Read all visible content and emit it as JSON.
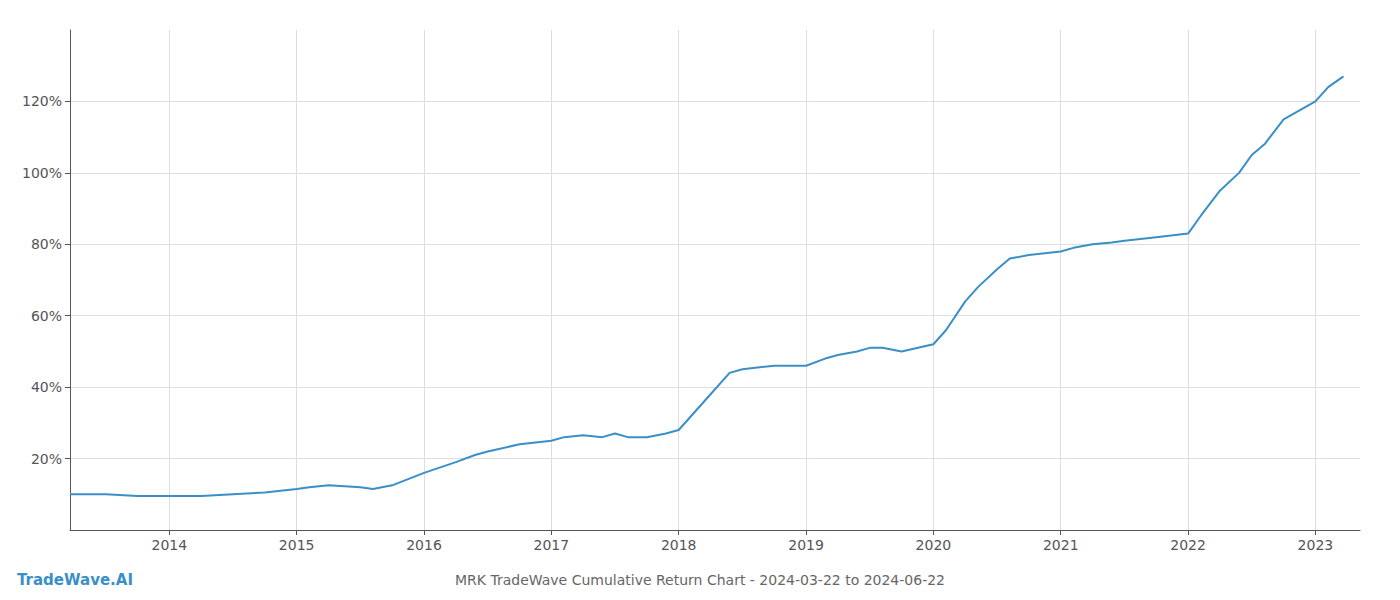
{
  "chart_data": {
    "type": "line",
    "title": "MRK TradeWave Cumulative Return Chart - 2024-03-22 to 2024-06-22",
    "annotations": [
      "TradeWave.AI"
    ],
    "color": "#3a8fc7",
    "x": [
      2013.22,
      2013.5,
      2013.75,
      2014.0,
      2014.25,
      2014.5,
      2014.75,
      2015.0,
      2015.1,
      2015.25,
      2015.5,
      2015.6,
      2015.75,
      2016.0,
      2016.25,
      2016.4,
      2016.5,
      2016.75,
      2017.0,
      2017.1,
      2017.25,
      2017.4,
      2017.5,
      2017.6,
      2017.75,
      2017.9,
      2018.0,
      2018.25,
      2018.4,
      2018.5,
      2018.75,
      2019.0,
      2019.15,
      2019.25,
      2019.4,
      2019.5,
      2019.6,
      2019.75,
      2020.0,
      2020.1,
      2020.25,
      2020.35,
      2020.5,
      2020.6,
      2020.75,
      2021.0,
      2021.1,
      2021.25,
      2021.4,
      2021.5,
      2021.75,
      2022.0,
      2022.1,
      2022.25,
      2022.4,
      2022.5,
      2022.6,
      2022.75,
      2023.0,
      2023.1,
      2023.22
    ],
    "values": [
      10,
      10,
      9.5,
      9.5,
      9.5,
      10,
      10.5,
      11.5,
      12,
      12.5,
      12,
      11.5,
      12.5,
      16,
      19,
      21,
      22,
      24,
      25,
      26,
      26.5,
      26,
      27,
      26,
      26,
      27,
      28,
      38,
      44,
      45,
      46,
      46,
      48,
      49,
      50,
      51,
      51,
      50,
      52,
      56,
      64,
      68,
      73,
      76,
      77,
      78,
      79,
      80,
      80.5,
      81,
      82,
      83,
      88,
      95,
      100,
      105,
      108,
      115,
      120,
      124,
      127
    ],
    "xlim": [
      2013.22,
      2023.35
    ],
    "xticks": [
      2014,
      2015,
      2016,
      2017,
      2018,
      2019,
      2020,
      2021,
      2022,
      2023
    ],
    "ylim": [
      0,
      140
    ],
    "yticks": [
      {
        "value": 20,
        "label": "20%"
      },
      {
        "value": 40,
        "label": "40%"
      },
      {
        "value": 60,
        "label": "60%"
      },
      {
        "value": 80,
        "label": "80%"
      },
      {
        "value": 100,
        "label": "100%"
      },
      {
        "value": 120,
        "label": "120%"
      }
    ],
    "grid": true
  }
}
